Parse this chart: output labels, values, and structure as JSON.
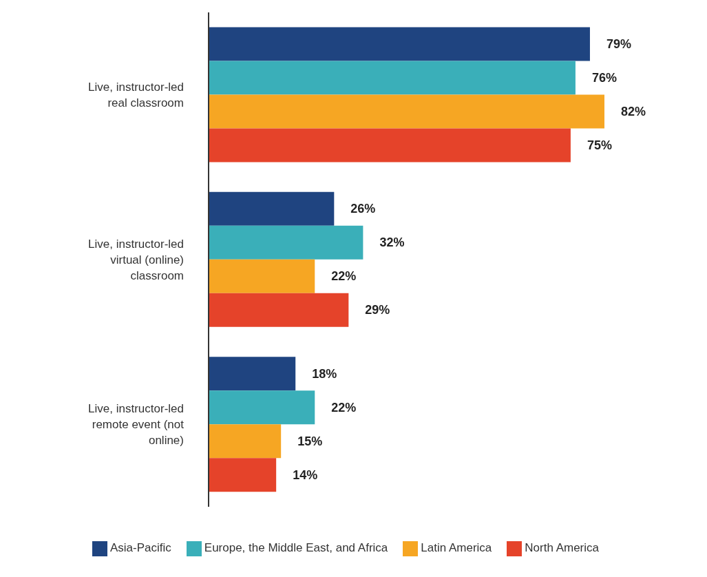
{
  "chart_data": {
    "type": "bar",
    "orientation": "horizontal",
    "categories": [
      "Live, instructor-led real classroom",
      "Live, instructor-led virtual (online) classroom",
      "Live, instructor-led remote event (not online)"
    ],
    "series": [
      {
        "name": "Asia-Pacific",
        "color": "#1f4480",
        "values": [
          79,
          26,
          18
        ],
        "value_labels": [
          "79%",
          "26%",
          "18%"
        ]
      },
      {
        "name": "Europe, the Middle East, and Africa",
        "color": "#3aafb9",
        "values": [
          76,
          32,
          22
        ],
        "value_labels": [
          "76%",
          "32%",
          "22%"
        ]
      },
      {
        "name": "Latin America",
        "color": "#f6a623",
        "values": [
          82,
          22,
          15
        ],
        "value_labels": [
          "82%",
          "22%",
          "15%"
        ]
      },
      {
        "name": "North America",
        "color": "#e5432a",
        "values": [
          75,
          29,
          14
        ],
        "value_labels": [
          "75%",
          "29%",
          "14%"
        ]
      }
    ],
    "legend": "bottom",
    "grid": false
  }
}
